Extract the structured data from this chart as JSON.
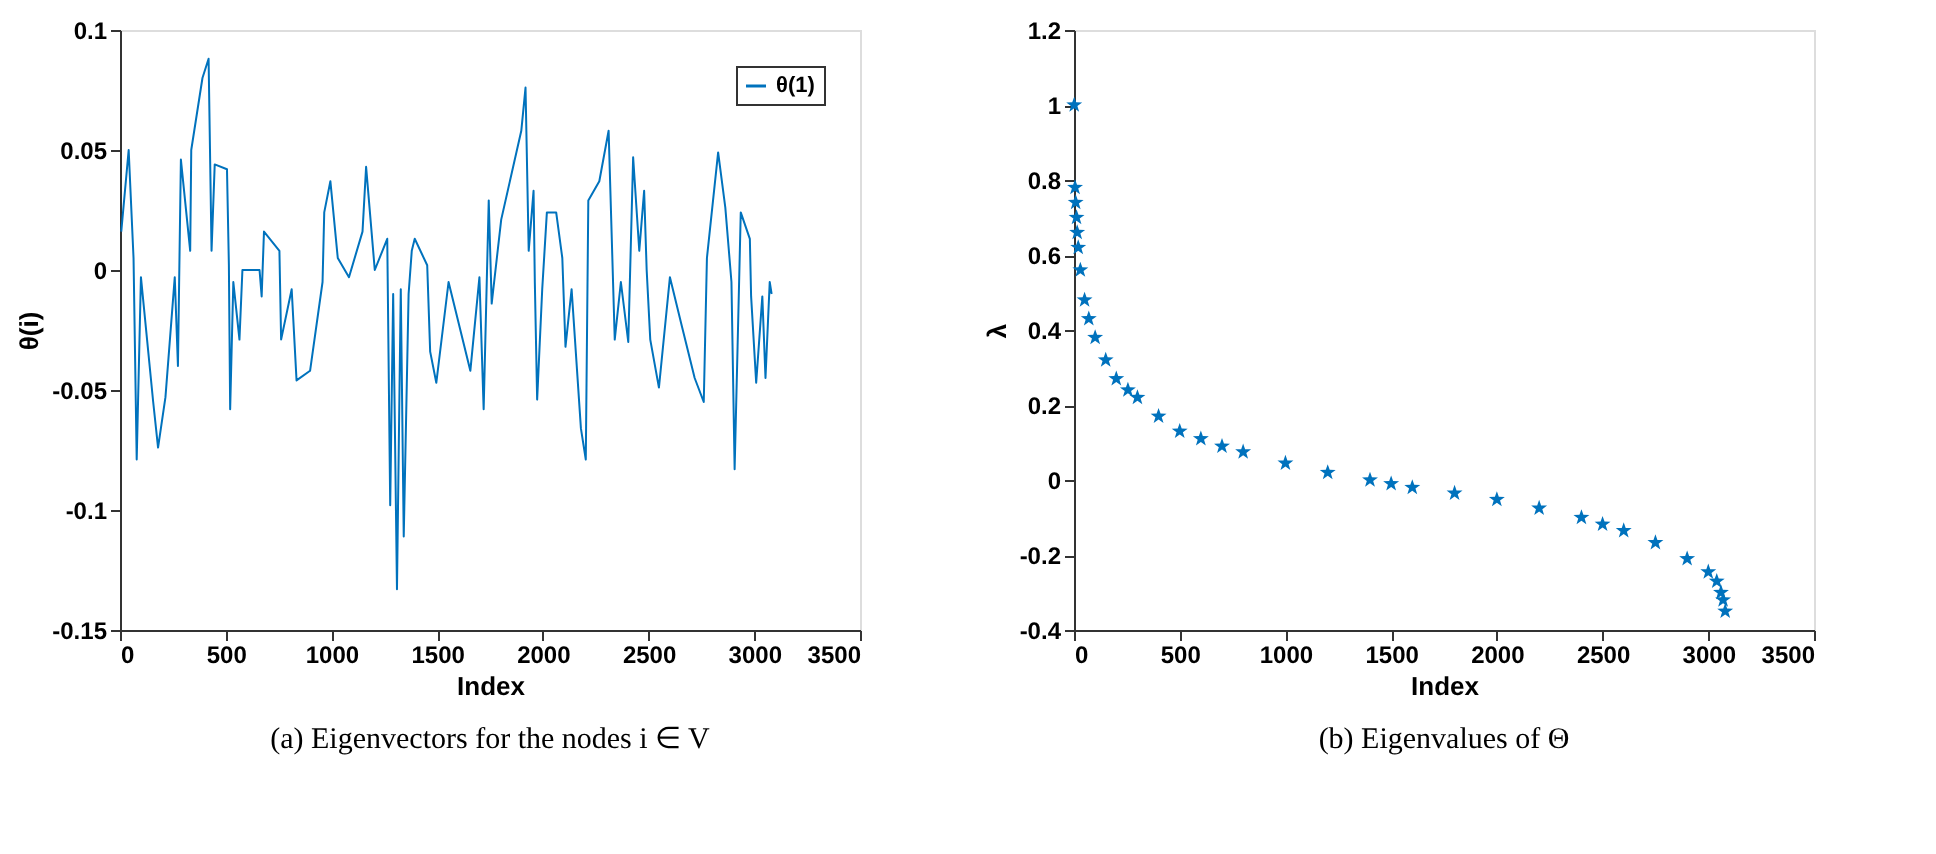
{
  "chart_data": [
    {
      "type": "line",
      "title": "(a) Eigenvectors for the nodes i ∈ V",
      "xlabel": "Index",
      "ylabel": "θ(i)",
      "xlim": [
        0,
        3500
      ],
      "xticks": [
        0,
        500,
        1000,
        1500,
        2000,
        2500,
        3000,
        3500
      ],
      "ylim": [
        -0.15,
        0.1
      ],
      "yticks": [
        -0.15,
        -0.1,
        -0.05,
        0,
        0.05,
        0.1
      ],
      "grid": false,
      "legend": "top right",
      "series": [
        {
          "name": "θ(1)",
          "color": "#0072bd",
          "x": [
            6,
            41,
            64,
            79,
            99,
            157,
            180,
            215,
            259,
            274,
            288,
            332,
            337,
            390,
            419,
            433,
            448,
            506,
            515,
            521,
            536,
            565,
            579,
            660,
            670,
            681,
            754,
            762,
            812,
            835,
            899,
            958,
            966,
            995,
            1030,
            1083,
            1147,
            1164,
            1205,
            1264,
            1278,
            1292,
            1310,
            1328,
            1342,
            1365,
            1380,
            1394,
            1453,
            1467,
            1496,
            1554,
            1657,
            1700,
            1720,
            1744,
            1758,
            1803,
            1898,
            1918,
            1933,
            1956,
            1962,
            1973,
            1997,
            2019,
            2063,
            2092,
            2107,
            2136,
            2180,
            2203,
            2215,
            2267,
            2311,
            2326,
            2340,
            2369,
            2404,
            2427,
            2456,
            2479,
            2491,
            2508,
            2549,
            2601,
            2659,
            2718,
            2761,
            2776,
            2829,
            2863,
            2892,
            2907,
            2921,
            2936,
            2979,
            2985,
            3009,
            3038,
            3053,
            3073,
            3082
          ],
          "values": [
            0.016,
            0.05,
            0.005,
            -0.079,
            -0.003,
            -0.055,
            -0.074,
            -0.053,
            -0.003,
            -0.04,
            0.046,
            0.008,
            0.05,
            0.08,
            0.088,
            0.008,
            0.044,
            0.042,
            0.002,
            -0.058,
            -0.005,
            -0.029,
            0,
            0,
            -0.011,
            0.016,
            0.008,
            -0.029,
            -0.008,
            -0.046,
            -0.042,
            -0.005,
            0.024,
            0.037,
            0.005,
            -0.003,
            0.016,
            0.043,
            0,
            0.013,
            -0.098,
            -0.01,
            -0.133,
            -0.008,
            -0.111,
            -0.01,
            0.008,
            0.013,
            0.002,
            -0.034,
            -0.047,
            -0.005,
            -0.042,
            -0.003,
            -0.058,
            0.029,
            -0.014,
            0.021,
            0.058,
            0.076,
            0.008,
            0.033,
            -0.005,
            -0.054,
            -0.008,
            0.024,
            0.024,
            0.005,
            -0.032,
            -0.008,
            -0.066,
            -0.079,
            0.029,
            0.037,
            0.058,
            0.013,
            -0.029,
            -0.005,
            -0.03,
            0.047,
            0.008,
            0.033,
            0,
            -0.029,
            -0.049,
            -0.003,
            -0.024,
            -0.045,
            -0.055,
            0.005,
            0.049,
            0.026,
            -0.005,
            -0.083,
            -0.032,
            0.024,
            0.013,
            -0.011,
            -0.047,
            -0.011,
            -0.045,
            -0.005,
            -0.01
          ]
        }
      ]
    },
    {
      "type": "scatter",
      "title": "(b) Eigenvalues of Θ",
      "xlabel": "Index",
      "ylabel": "λ",
      "xlim": [
        0,
        3500
      ],
      "xticks": [
        0,
        500,
        1000,
        1500,
        2000,
        2500,
        3000,
        3500
      ],
      "ylim": [
        -0.4,
        1.2
      ],
      "yticks": [
        -0.4,
        -0.2,
        0,
        0.2,
        0.4,
        0.6,
        0.8,
        1,
        1.2
      ],
      "grid": false,
      "marker": "star",
      "series": [
        {
          "color": "#0072bd",
          "x": [
            1,
            5,
            8,
            12,
            15,
            20,
            30,
            50,
            70,
            100,
            150,
            200,
            255,
            300,
            400,
            500,
            600,
            700,
            800,
            1000,
            1200,
            1400,
            1500,
            1600,
            1800,
            2000,
            2200,
            2400,
            2500,
            2600,
            2750,
            2900,
            3000,
            3040,
            3060,
            3070,
            3080
          ],
          "values": [
            1.0,
            0.78,
            0.74,
            0.7,
            0.66,
            0.62,
            0.56,
            0.48,
            0.43,
            0.38,
            0.32,
            0.27,
            0.24,
            0.22,
            0.17,
            0.13,
            0.11,
            0.09,
            0.075,
            0.045,
            0.02,
            0,
            -0.01,
            -0.02,
            -0.035,
            -0.052,
            -0.075,
            -0.1,
            -0.118,
            -0.135,
            -0.167,
            -0.21,
            -0.245,
            -0.27,
            -0.3,
            -0.32,
            -0.35
          ]
        }
      ]
    }
  ]
}
